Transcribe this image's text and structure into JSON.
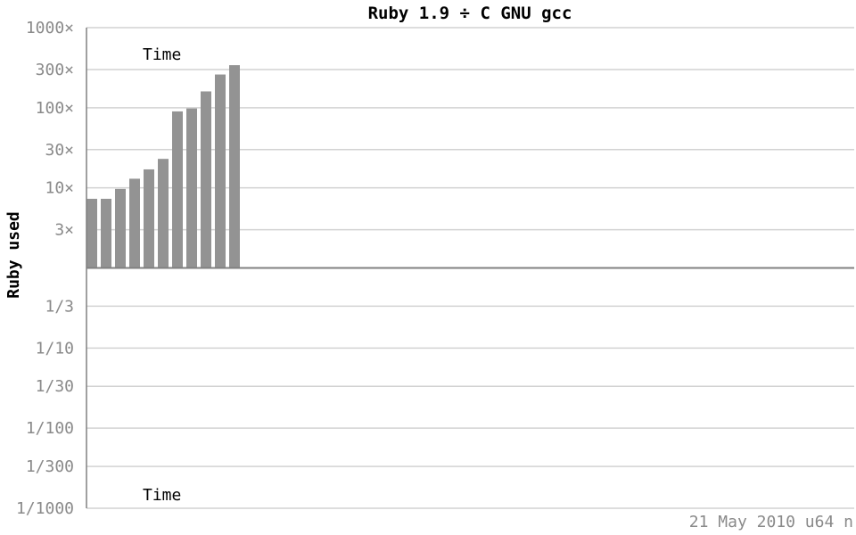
{
  "chart_data": {
    "type": "bar",
    "title": "Ruby 1.9 ÷ C GNU gcc",
    "ylabel": "Ruby used",
    "xlabel": "",
    "yscale": "log",
    "ylim": [
      0.001,
      1000
    ],
    "baseline": 1,
    "grid": true,
    "yticks": [
      {
        "value": 1000,
        "label": "1000×"
      },
      {
        "value": 300,
        "label": "300×"
      },
      {
        "value": 100,
        "label": "100×"
      },
      {
        "value": 30,
        "label": "30×"
      },
      {
        "value": 10,
        "label": "10×"
      },
      {
        "value": 3,
        "label": "3×"
      },
      {
        "value": 0.3333,
        "label": "1/3"
      },
      {
        "value": 0.1,
        "label": "1/10"
      },
      {
        "value": 0.0333,
        "label": "1/30"
      },
      {
        "value": 0.01,
        "label": "1/100"
      },
      {
        "value": 0.00333,
        "label": "1/300"
      },
      {
        "value": 0.001,
        "label": "1/1000"
      }
    ],
    "annotations": {
      "upper": "Time",
      "lower": "Time"
    },
    "footer": "21 May 2010 u64 n",
    "series": [
      {
        "values": [
          7.3,
          7.3,
          9.7,
          13,
          17,
          23,
          90,
          98,
          160,
          260,
          340
        ]
      }
    ],
    "colors": {
      "bar": "#939393",
      "grid": "#d2d2d2",
      "axis": "#808080",
      "baseline": "#808080"
    }
  }
}
